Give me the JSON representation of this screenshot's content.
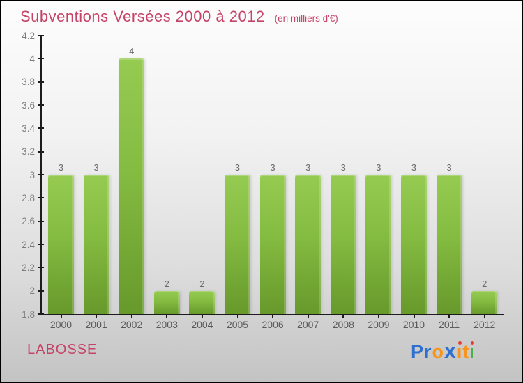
{
  "header": {
    "title": "Subventions Versées 2000 à 2012",
    "subtitle": "(en milliers d'€)"
  },
  "chart_data": {
    "type": "bar",
    "title": "Subventions Versées 2000 à 2012",
    "subtitle": "(en milliers d'€)",
    "categories": [
      "2000",
      "2001",
      "2002",
      "2003",
      "2004",
      "2005",
      "2006",
      "2007",
      "2008",
      "2009",
      "2010",
      "2011",
      "2012"
    ],
    "values": [
      3,
      3,
      4,
      2,
      2,
      3,
      3,
      3,
      3,
      3,
      3,
      3,
      2
    ],
    "ylim": [
      1.8,
      4.2
    ],
    "ytick_step": 0.2,
    "ytick_labels": [
      "1.8",
      "2",
      "2.2",
      "2.4",
      "2.6",
      "2.8",
      "3",
      "3.2",
      "3.4",
      "3.6",
      "3.8",
      "4",
      "4.2"
    ],
    "grid": false,
    "legend": null,
    "bar_color_top": "#96cb52",
    "bar_color_bottom": "#67992b",
    "axis_color": "#1c1c1c",
    "value_label_color": "#6b6b6b"
  },
  "footer": {
    "entity": "LABOSSE",
    "logo_text": "Proxiti",
    "logo_letters": [
      {
        "char": "P",
        "color": "#2e6fd0"
      },
      {
        "char": "r",
        "color": "#2e6fd0"
      },
      {
        "char": "o",
        "color": "#f7941e"
      },
      {
        "char": "x",
        "color": "#2e6fd0",
        "bold": true
      },
      {
        "char": "i",
        "color": "#f7941e",
        "dot": "#e8392e"
      },
      {
        "char": "t",
        "color": "#f7941e"
      },
      {
        "char": "i",
        "color": "#47b24a",
        "dot": "#e8392e"
      }
    ]
  },
  "colors": {
    "accent_pink": "#c64368",
    "background_top": "#fdfdfd",
    "background_bottom": "#c3c3c3"
  }
}
